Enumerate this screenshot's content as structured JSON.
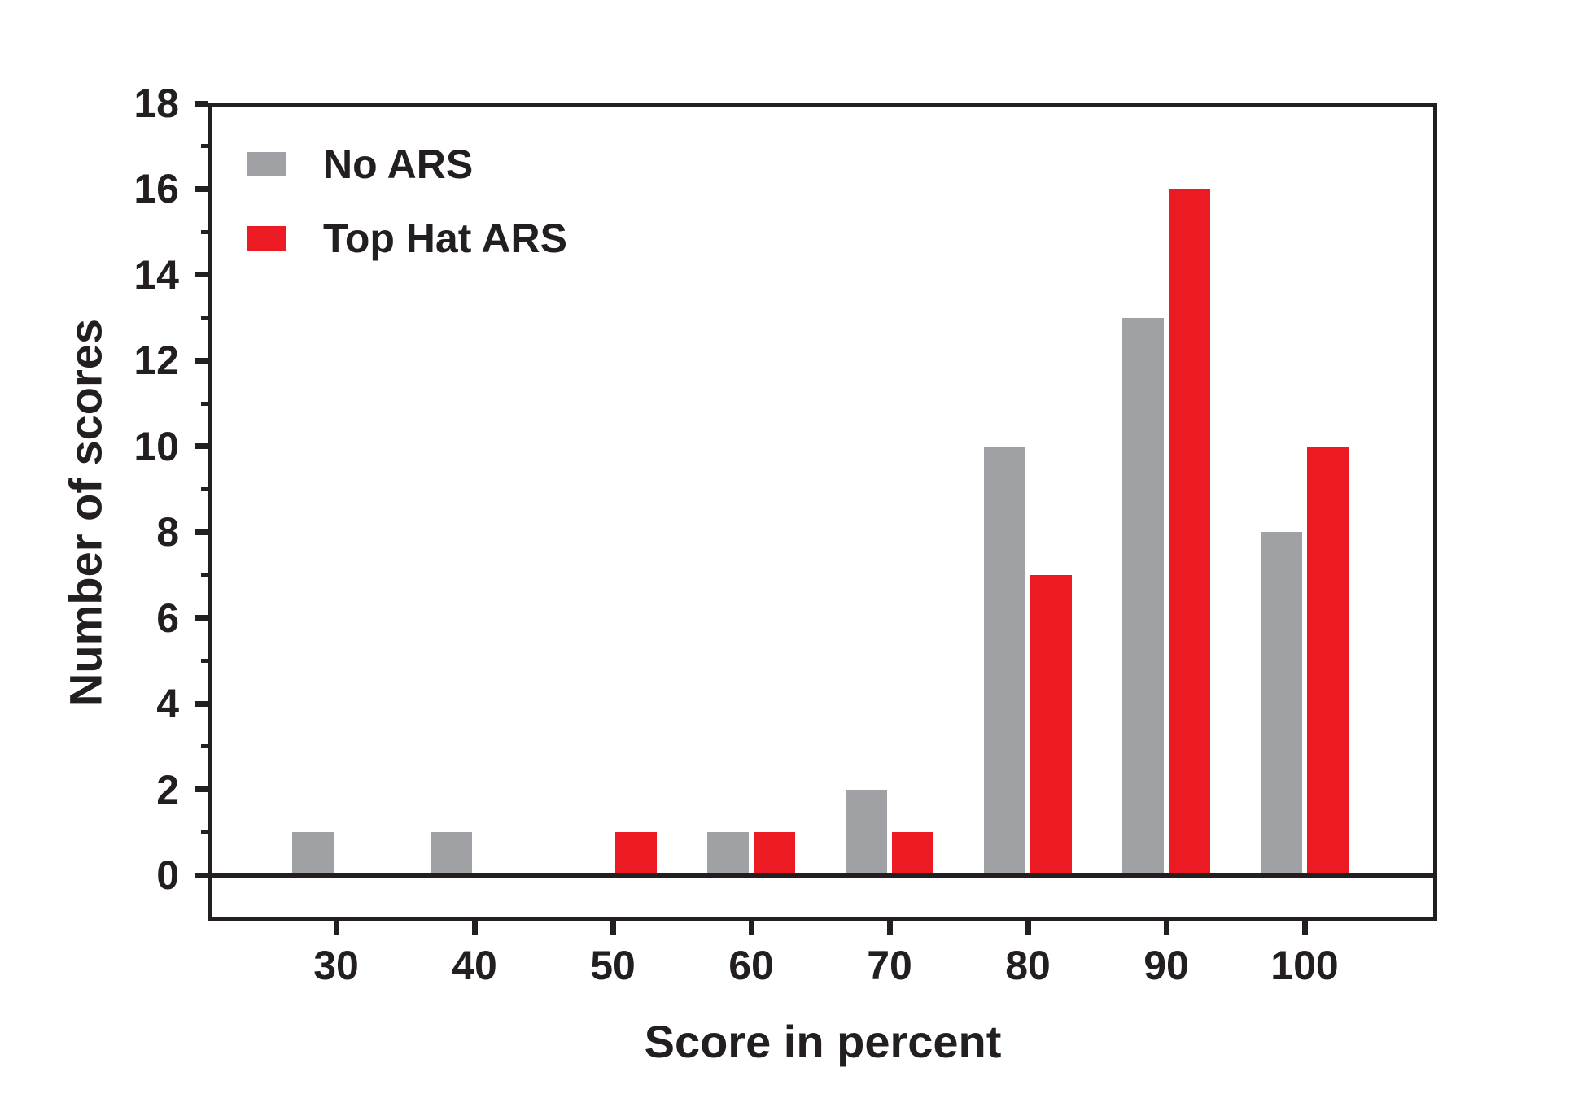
{
  "chart_data": {
    "type": "bar",
    "title": "",
    "xlabel": "Score in percent",
    "ylabel": "Number of scores",
    "categories": [
      "30",
      "40",
      "50",
      "60",
      "70",
      "80",
      "90",
      "100"
    ],
    "series": [
      {
        "name": "No ARS",
        "color": "#A0A1A5",
        "values": [
          1,
          1,
          0,
          1,
          2,
          10,
          13,
          8
        ]
      },
      {
        "name": "Top Hat ARS",
        "color": "#EC1B23",
        "values": [
          0,
          0,
          1,
          1,
          1,
          7,
          16,
          10
        ]
      }
    ],
    "ylim": [
      0,
      18
    ],
    "y_major_ticks": [
      0,
      2,
      4,
      6,
      8,
      10,
      12,
      14,
      16,
      18
    ],
    "y_minor_ticks": [
      1,
      3,
      5,
      7,
      9,
      11,
      13,
      15,
      17
    ],
    "grid": false,
    "legend_position": "top-left",
    "axis_color": "#231F20",
    "background_color": "#FFFFFF"
  }
}
